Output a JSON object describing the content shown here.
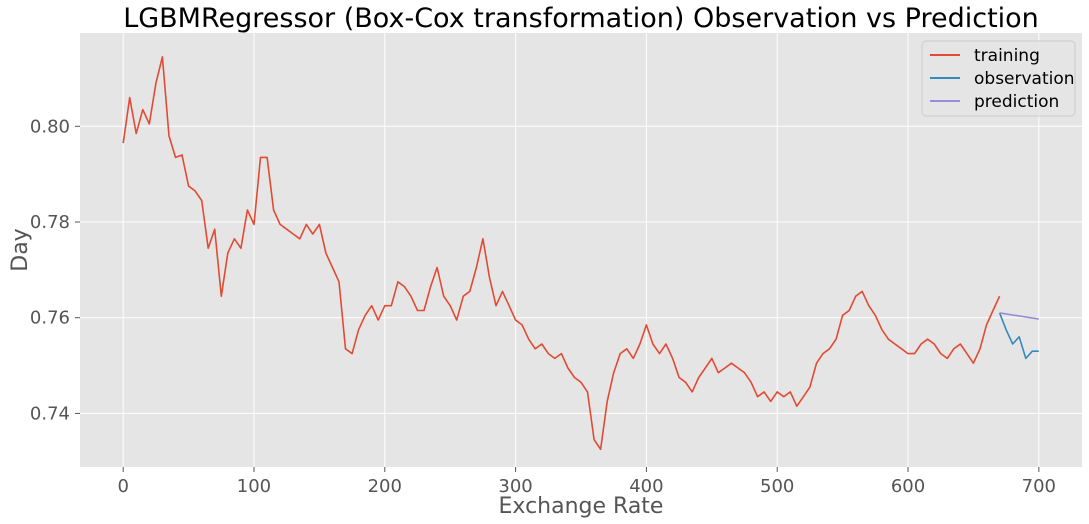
{
  "chart_data": {
    "type": "line",
    "title": "LGBMRegressor (Box-Cox transformation) Observation vs Prediction",
    "xlabel": "Exchange Rate",
    "ylabel": "Day",
    "xlim": [
      -33,
      733
    ],
    "ylim": [
      0.7288,
      0.8195
    ],
    "xticks": [
      0,
      100,
      200,
      300,
      400,
      500,
      600,
      700
    ],
    "xtick_labels": [
      "0",
      "100",
      "200",
      "300",
      "400",
      "500",
      "600",
      "700"
    ],
    "yticks": [
      0.74,
      0.76,
      0.78,
      0.8
    ],
    "ytick_labels": [
      "0.74",
      "0.76",
      "0.78",
      "0.80"
    ],
    "grid": true,
    "legend_position": "top-right",
    "series": [
      {
        "name": "training",
        "color": "#e24a33",
        "x": [
          0,
          5,
          10,
          15,
          20,
          25,
          30,
          35,
          40,
          45,
          50,
          55,
          60,
          65,
          70,
          75,
          80,
          85,
          90,
          95,
          100,
          105,
          110,
          115,
          120,
          125,
          130,
          135,
          140,
          145,
          150,
          155,
          160,
          165,
          170,
          175,
          180,
          185,
          190,
          195,
          200,
          205,
          210,
          215,
          220,
          225,
          230,
          235,
          240,
          245,
          250,
          255,
          260,
          265,
          270,
          275,
          280,
          285,
          290,
          295,
          300,
          305,
          310,
          315,
          320,
          325,
          330,
          335,
          340,
          345,
          350,
          355,
          360,
          365,
          370,
          375,
          380,
          385,
          390,
          395,
          400,
          405,
          410,
          415,
          420,
          425,
          430,
          435,
          440,
          445,
          450,
          455,
          460,
          465,
          470,
          475,
          480,
          485,
          490,
          495,
          500,
          505,
          510,
          515,
          520,
          525,
          530,
          535,
          540,
          545,
          550,
          555,
          560,
          565,
          570,
          575,
          580,
          585,
          590,
          595,
          600,
          605,
          610,
          615,
          620,
          625,
          630,
          635,
          640,
          645,
          650,
          655,
          660,
          665,
          670
        ],
        "y": [
          0.7965,
          0.806,
          0.7985,
          0.8035,
          0.8005,
          0.809,
          0.8145,
          0.798,
          0.7935,
          0.794,
          0.7875,
          0.7865,
          0.7845,
          0.7745,
          0.7785,
          0.7645,
          0.7735,
          0.7765,
          0.7745,
          0.7825,
          0.7795,
          0.7935,
          0.7935,
          0.7825,
          0.7795,
          0.7785,
          0.7775,
          0.7765,
          0.7795,
          0.7775,
          0.7795,
          0.7735,
          0.7705,
          0.7675,
          0.7535,
          0.7525,
          0.7575,
          0.7605,
          0.7625,
          0.7595,
          0.7625,
          0.7625,
          0.7675,
          0.7665,
          0.7645,
          0.7615,
          0.7615,
          0.7665,
          0.7705,
          0.7645,
          0.7625,
          0.7595,
          0.7645,
          0.7655,
          0.7705,
          0.7765,
          0.7685,
          0.7625,
          0.7655,
          0.7625,
          0.7595,
          0.7585,
          0.7555,
          0.7535,
          0.7545,
          0.7525,
          0.7515,
          0.7525,
          0.7495,
          0.7475,
          0.7465,
          0.7445,
          0.7345,
          0.7325,
          0.7425,
          0.7485,
          0.7525,
          0.7535,
          0.7515,
          0.7545,
          0.7585,
          0.7545,
          0.7525,
          0.7545,
          0.7515,
          0.7475,
          0.7465,
          0.7445,
          0.7475,
          0.7495,
          0.7515,
          0.7485,
          0.7495,
          0.7505,
          0.7495,
          0.7485,
          0.7465,
          0.7435,
          0.7445,
          0.7425,
          0.7445,
          0.7435,
          0.7445,
          0.7415,
          0.7435,
          0.7455,
          0.7505,
          0.7525,
          0.7535,
          0.7555,
          0.7605,
          0.7615,
          0.7645,
          0.7655,
          0.7625,
          0.7605,
          0.7575,
          0.7555,
          0.7545,
          0.7535,
          0.7525,
          0.7525,
          0.7545,
          0.7555,
          0.7545,
          0.7525,
          0.7515,
          0.7535,
          0.7545,
          0.7525,
          0.7505,
          0.7535,
          0.7585,
          0.7615,
          0.7645
        ]
      },
      {
        "name": "observation",
        "color": "#348abd",
        "x": [
          670,
          675,
          680,
          685,
          690,
          695,
          700
        ],
        "y": [
          0.761,
          0.7575,
          0.7545,
          0.756,
          0.7515,
          0.753,
          0.753
        ]
      },
      {
        "name": "prediction",
        "color": "#988ed5",
        "x": [
          670,
          700
        ],
        "y": [
          0.761,
          0.7597
        ]
      }
    ]
  }
}
